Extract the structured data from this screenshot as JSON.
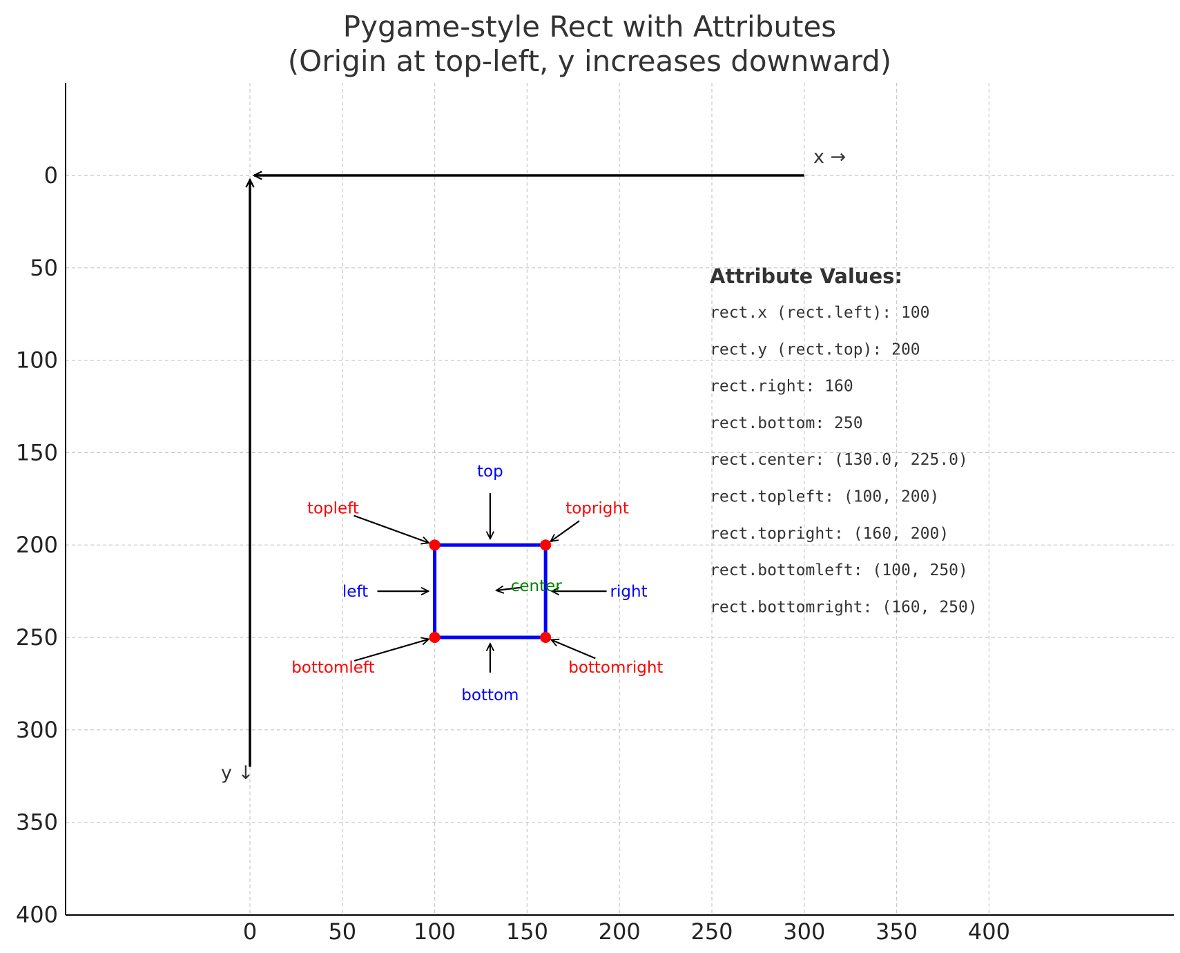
{
  "title": [
    "Pygame-style Rect with Attributes",
    "(Origin at top-left, y increases downward)"
  ],
  "axis_notes": {
    "x": "x →",
    "y": "y ↓"
  },
  "colors": {
    "rect": "#0000ff",
    "corner": "#ff0000",
    "center": "#008000",
    "edge_label": "#0000ff",
    "grid": "#c8c8c8",
    "axis": "#000000"
  },
  "chart_data": {
    "type": "diagram",
    "x_ticks": [
      0,
      50,
      100,
      150,
      200,
      250,
      300,
      350,
      400
    ],
    "y_ticks": [
      0,
      50,
      100,
      150,
      200,
      250,
      300,
      350,
      400
    ],
    "xlim": [
      -100,
      500
    ],
    "ylim": [
      400,
      -50
    ],
    "y_inverted": true,
    "grid": true,
    "origin_arrows": {
      "x_from": [
        300,
        0
      ],
      "x_to": [
        0,
        0
      ],
      "y_from": [
        0,
        320
      ],
      "y_to": [
        0,
        0
      ]
    },
    "rect": {
      "x": 100,
      "y": 200,
      "right": 160,
      "bottom": 250
    },
    "points": [
      {
        "name": "topleft",
        "at": [
          100,
          200
        ],
        "kind": "corner"
      },
      {
        "name": "topright",
        "at": [
          160,
          200
        ],
        "kind": "corner"
      },
      {
        "name": "bottomleft",
        "at": [
          100,
          250
        ],
        "kind": "corner"
      },
      {
        "name": "bottomright",
        "at": [
          160,
          250
        ],
        "kind": "corner"
      }
    ],
    "annotations": [
      {
        "text": "topleft",
        "kind": "corner",
        "text_at": [
          45,
          180
        ],
        "arrow_to": [
          100,
          200
        ]
      },
      {
        "text": "topright",
        "kind": "corner",
        "text_at": [
          188,
          180
        ],
        "arrow_to": [
          160,
          200
        ]
      },
      {
        "text": "bottomleft",
        "kind": "corner",
        "text_at": [
          45,
          266
        ],
        "arrow_to": [
          100,
          250
        ]
      },
      {
        "text": "bottomright",
        "kind": "corner",
        "text_at": [
          198,
          266
        ],
        "arrow_to": [
          160,
          250
        ]
      },
      {
        "text": "top",
        "kind": "edge",
        "text_at": [
          130,
          160
        ],
        "arrow_to": [
          130,
          200
        ]
      },
      {
        "text": "bottom",
        "kind": "edge",
        "text_at": [
          130,
          281
        ],
        "arrow_to": [
          130,
          250
        ]
      },
      {
        "text": "left",
        "kind": "edge",
        "text_at": [
          57,
          225
        ],
        "arrow_to": [
          100,
          225
        ]
      },
      {
        "text": "right",
        "kind": "edge",
        "text_at": [
          205,
          225
        ],
        "arrow_to": [
          160,
          225
        ]
      },
      {
        "text": "center",
        "kind": "center",
        "text_at": [
          155,
          222
        ],
        "arrow_to": [
          130,
          225
        ]
      }
    ],
    "panel": {
      "title": "Attribute Values:",
      "lines": [
        "rect.x (rect.left): 100",
        "rect.y (rect.top): 200",
        "rect.right: 160",
        "rect.bottom: 250",
        "rect.center: (130.0, 225.0)",
        "rect.topleft: (100, 200)",
        "rect.topright: (160, 200)",
        "rect.bottomleft: (100, 250)",
        "rect.bottomright: (160, 250)"
      ]
    }
  }
}
